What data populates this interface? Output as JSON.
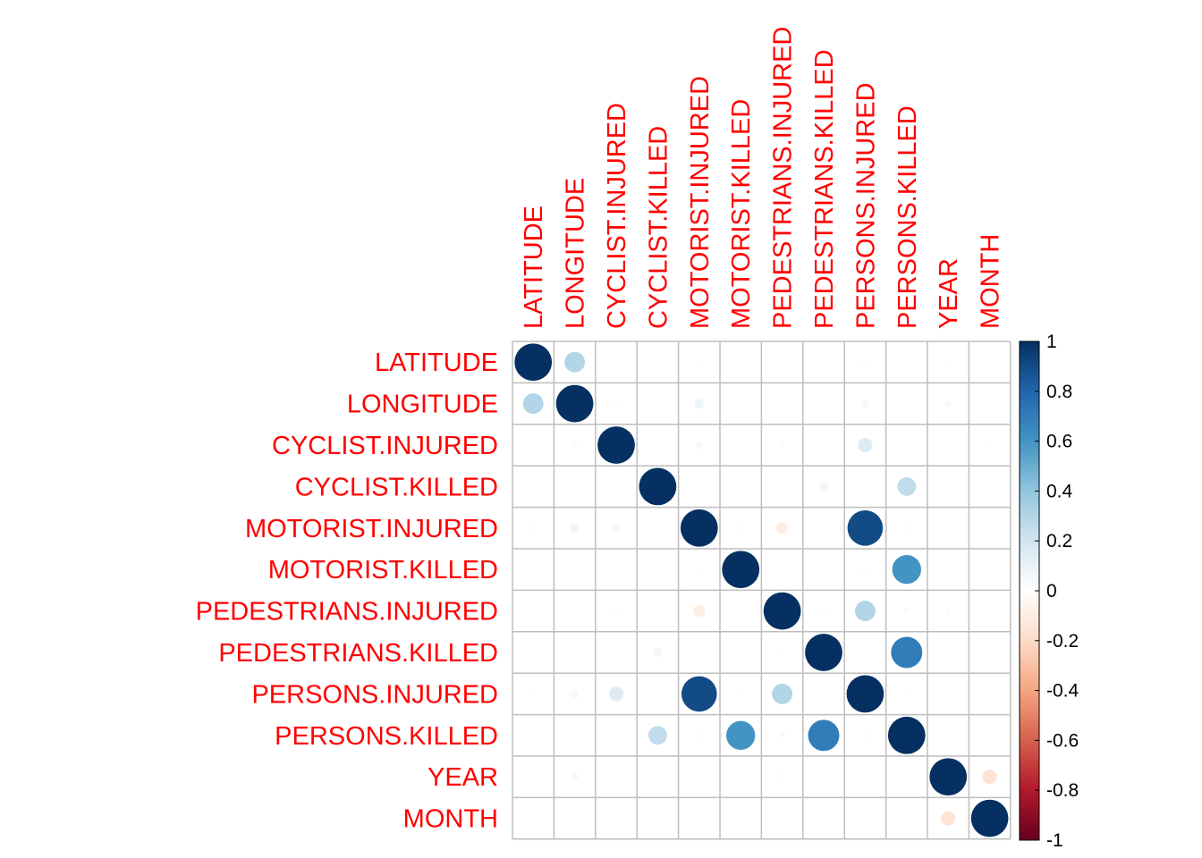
{
  "chart_data": {
    "type": "heatmap",
    "title": "",
    "variables": [
      "LATITUDE",
      "LONGITUDE",
      "CYCLIST.INJURED",
      "CYCLIST.KILLED",
      "MOTORIST.INJURED",
      "MOTORIST.KILLED",
      "PEDESTRIANS.INJURED",
      "PEDESTRIANS.KILLED",
      "PERSONS.INJURED",
      "PERSONS.KILLED",
      "YEAR",
      "MONTH"
    ],
    "matrix": [
      [
        1,
        0.3,
        0,
        0,
        0.02,
        0,
        0,
        0,
        0.02,
        0,
        0.01,
        0
      ],
      [
        0.3,
        1,
        0.02,
        0,
        0.07,
        0,
        0,
        0,
        0.05,
        0,
        0.04,
        0
      ],
      [
        0,
        0.02,
        1,
        0,
        0.04,
        0,
        0.02,
        0,
        0.15,
        0,
        0,
        0.01
      ],
      [
        0,
        0,
        0,
        1,
        0,
        0,
        0,
        0.06,
        0,
        0.25,
        0,
        0
      ],
      [
        0.02,
        0.07,
        0.04,
        0,
        1,
        0.02,
        -0.1,
        0,
        0.9,
        0.02,
        0,
        0
      ],
      [
        0,
        0,
        0,
        0,
        0.02,
        1,
        0,
        0,
        0.02,
        0.6,
        0,
        0
      ],
      [
        0,
        0,
        0.02,
        0,
        -0.1,
        0,
        1,
        0.02,
        0.3,
        0.03,
        0.02,
        0
      ],
      [
        0,
        0,
        0,
        0.06,
        0,
        0,
        0.02,
        1,
        0,
        0.7,
        0,
        0
      ],
      [
        0.02,
        0.05,
        0.15,
        0,
        0.9,
        0.02,
        0.3,
        0,
        1,
        0.02,
        0,
        0.01
      ],
      [
        0,
        0,
        0,
        0.25,
        0.02,
        0.6,
        0.03,
        0.7,
        0.02,
        1,
        0,
        0
      ],
      [
        0.01,
        0.04,
        0,
        0,
        0,
        0,
        0.02,
        0,
        0,
        0,
        1,
        -0.15
      ],
      [
        0,
        0,
        0.01,
        0,
        0,
        0,
        0,
        0,
        0.01,
        0,
        -0.15,
        1
      ]
    ],
    "colorbar": {
      "range": [
        -1,
        1
      ],
      "ticks": [
        "1",
        "0.8",
        "0.6",
        "0.4",
        "0.2",
        "0",
        "-0.2",
        "-0.4",
        "-0.6",
        "-0.8",
        "-1"
      ],
      "tick_values": [
        1,
        0.8,
        0.6,
        0.4,
        0.2,
        0,
        -0.2,
        -0.4,
        -0.6,
        -0.8,
        -1
      ]
    },
    "colors": {
      "label": "#ff0000",
      "grid": "#bebebe",
      "gradient_stops": [
        "#67001f",
        "#b2182b",
        "#d6604d",
        "#f4a582",
        "#fddbc7",
        "#ffffff",
        "#d1e5f0",
        "#92c5de",
        "#4393c3",
        "#2166ac",
        "#053061"
      ]
    },
    "grid": true,
    "legend_position": "right"
  }
}
